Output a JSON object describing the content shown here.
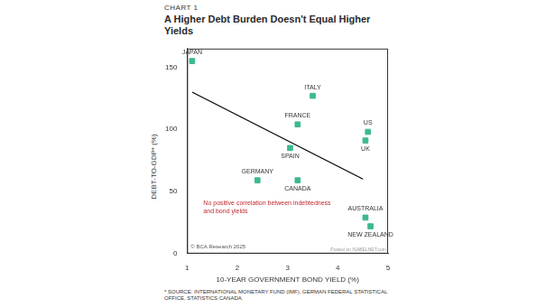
{
  "chart_data": {
    "type": "scatter",
    "chart_label": "CHART 1",
    "title": "A Higher Debt Burden Doesn't Equal Higher Yields",
    "x_label": "10-YEAR GOVERNMENT BOND YIELD (%)",
    "y_label": "DEBT-TO-GDP* (%)",
    "categories": [
      "JAPAN",
      "ITALY",
      "FRANCE",
      "US",
      "UK",
      "SPAIN",
      "GERMANY",
      "CANADA",
      "AUSTRALIA",
      "NEW ZEALAND"
    ],
    "x": [
      1.1,
      3.5,
      3.2,
      4.6,
      4.55,
      3.05,
      2.4,
      3.2,
      4.55,
      4.65
    ],
    "values": [
      155,
      127,
      104,
      98,
      91,
      85,
      59,
      59,
      29,
      22
    ],
    "color": "#3dba8c",
    "marker": "square",
    "trend_line": {
      "x": [
        1.1,
        4.5
      ],
      "values": [
        130,
        60
      ],
      "color": "#000000"
    },
    "annotation": {
      "text": [
        "No positive correlation between indebtedness",
        "and bond yields"
      ],
      "color": "#c0282d"
    },
    "copyright": "© BCA Research 2025",
    "watermark": "Posted on ISABELNET.com",
    "footnote": "* SOURCE: INTERNATIONAL MONETARY FUND (IMF), GERMAN FEDERAL STATISTICAL OFFICE, STATISTICS CANADA.",
    "xlim": [
      1,
      5
    ],
    "xticks": [
      1,
      2,
      3,
      4,
      5
    ],
    "ylim": [
      0,
      165
    ],
    "yticks": [
      0,
      50,
      100,
      150
    ],
    "grid": false
  }
}
